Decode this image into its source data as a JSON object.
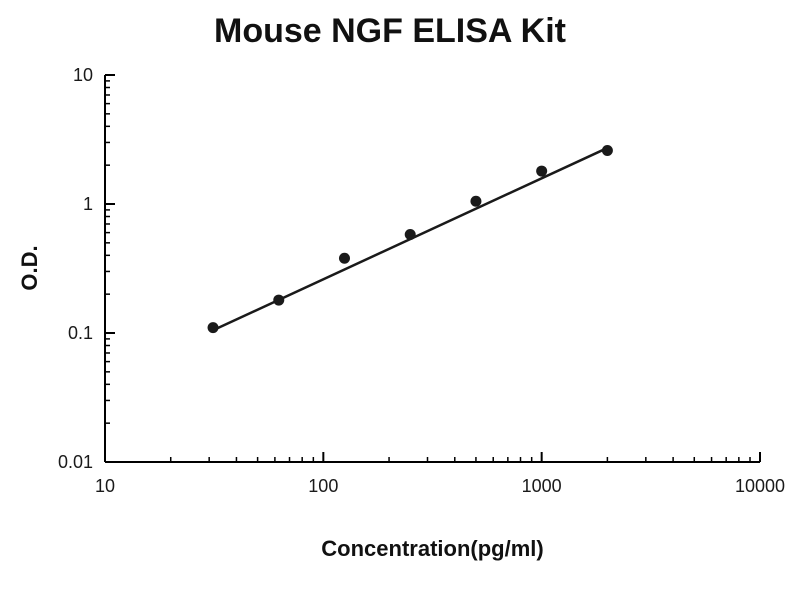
{
  "chart_data": {
    "type": "scatter",
    "title": "Mouse NGF ELISA Kit",
    "xlabel": "Concentration(pg/ml)",
    "ylabel": "O.D.",
    "x_scale": "log",
    "y_scale": "log",
    "xlim": [
      10,
      10000
    ],
    "ylim": [
      0.01,
      10
    ],
    "x_ticks": [
      10,
      100,
      1000,
      10000
    ],
    "y_ticks": [
      0.01,
      0.1,
      1,
      10
    ],
    "grid": false,
    "legend": "none",
    "points": {
      "x": [
        31.25,
        62.5,
        125,
        250,
        500,
        1000,
        2000
      ],
      "y": [
        0.11,
        0.18,
        0.38,
        0.58,
        1.05,
        1.8,
        2.6
      ]
    },
    "fit_line": {
      "x": [
        31.25,
        2000
      ],
      "y": [
        0.105,
        2.72
      ]
    },
    "colors": {
      "point": "#1a1a1a",
      "line": "#1a1a1a",
      "axis": "#000000",
      "background": "#ffffff"
    }
  }
}
